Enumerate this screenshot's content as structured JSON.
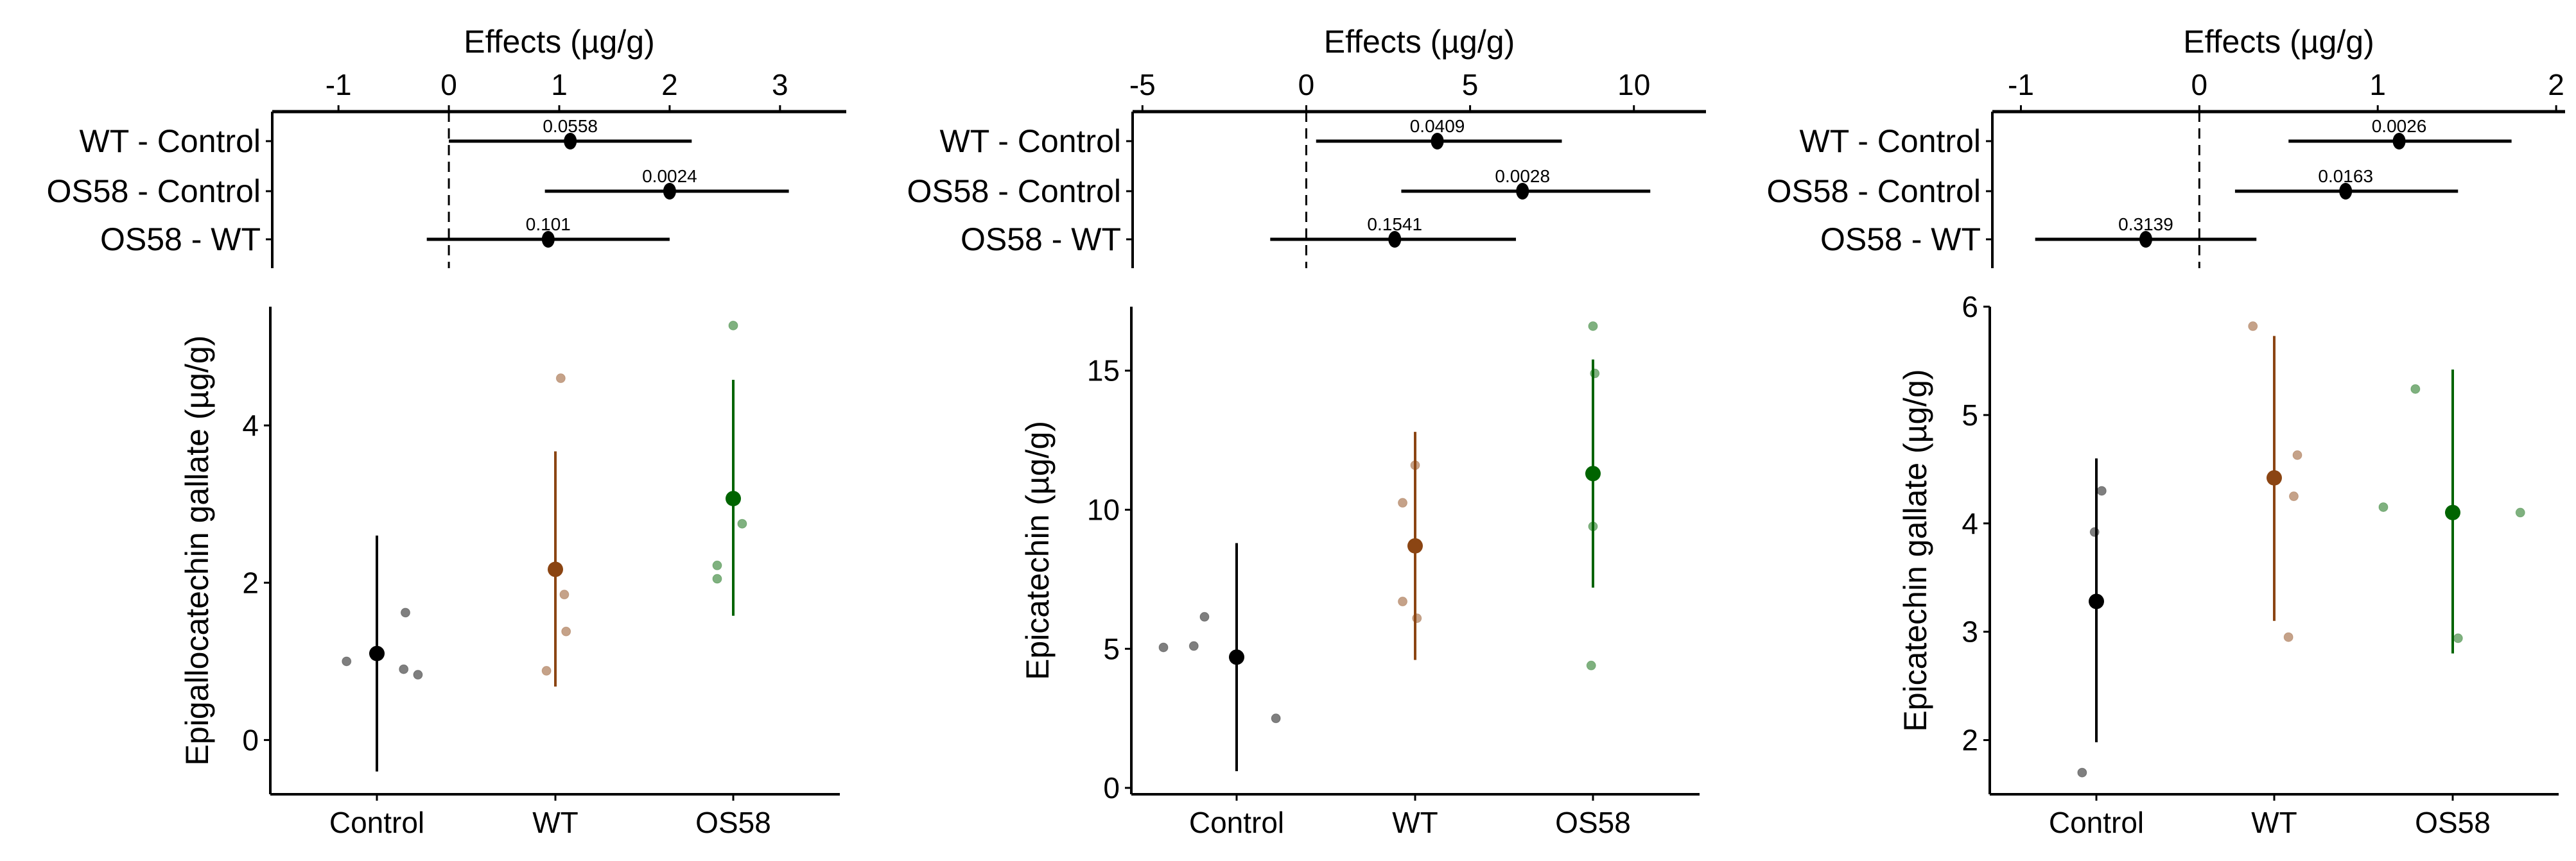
{
  "chart_data": [
    {
      "type": "forest",
      "title": "Effects (µg/g)",
      "xlim": [
        -1.6,
        3.6
      ],
      "xticks": [
        -1,
        0,
        1,
        2,
        3
      ],
      "reference_line": 0,
      "rows": [
        {
          "label": "WT - Control",
          "estimate": 1.1,
          "ci": [
            0.0,
            2.2
          ],
          "p_label": "0.0558"
        },
        {
          "label": "OS58 - Control",
          "estimate": 2.0,
          "ci": [
            0.87,
            3.08
          ],
          "p_label": "0.0024"
        },
        {
          "label": "OS58 - WT",
          "estimate": 0.9,
          "ci": [
            -0.2,
            2.0
          ],
          "p_label": "0.101"
        }
      ]
    },
    {
      "type": "scatter",
      "ylabel": "Epigallocatechin gallate (µg/g)",
      "ylim": [
        -0.69,
        5.51
      ],
      "yticks": [
        0,
        2,
        4
      ],
      "categories": [
        "Control",
        "WT",
        "OS58"
      ],
      "groups": [
        {
          "name": "Control",
          "color": "#000000",
          "mean": 1.1,
          "ci": [
            -0.4,
            2.6
          ],
          "points": [
            1.0,
            1.62,
            0.9,
            0.83
          ]
        },
        {
          "name": "WT",
          "color": "#8B4513",
          "mean": 2.17,
          "ci": [
            0.68,
            3.67
          ],
          "points": [
            4.6,
            1.85,
            1.38,
            0.88
          ]
        },
        {
          "name": "OS58",
          "color": "#006400",
          "mean": 3.07,
          "ci": [
            1.58,
            4.58
          ],
          "points": [
            5.27,
            2.75,
            2.22,
            2.05
          ]
        }
      ]
    },
    {
      "type": "forest",
      "title": "Effects (µg/g)",
      "xlim": [
        -5.3,
        12.2
      ],
      "xticks": [
        -5,
        0,
        5,
        10
      ],
      "reference_line": 0,
      "rows": [
        {
          "label": "WT - Control",
          "estimate": 4.0,
          "ci": [
            0.3,
            7.8
          ],
          "p_label": "0.0409"
        },
        {
          "label": "OS58 - Control",
          "estimate": 6.6,
          "ci": [
            2.9,
            10.5
          ],
          "p_label": "0.0028"
        },
        {
          "label": "OS58 - WT",
          "estimate": 2.7,
          "ci": [
            -1.1,
            6.4
          ],
          "p_label": "0.1541"
        }
      ]
    },
    {
      "type": "scatter",
      "ylabel": "Epicatechin (µg/g)",
      "ylim": [
        -0.23,
        17.3
      ],
      "yticks": [
        0,
        5,
        10,
        15
      ],
      "categories": [
        "Control",
        "WT",
        "OS58"
      ],
      "groups": [
        {
          "name": "Control",
          "color": "#000000",
          "mean": 4.7,
          "ci": [
            0.6,
            8.8
          ],
          "points": [
            5.05,
            5.1,
            6.15,
            2.5
          ]
        },
        {
          "name": "WT",
          "color": "#8B4513",
          "mean": 8.7,
          "ci": [
            4.6,
            12.8
          ],
          "points": [
            11.6,
            10.25,
            6.7,
            6.1
          ]
        },
        {
          "name": "OS58",
          "color": "#006400",
          "mean": 11.3,
          "ci": [
            7.2,
            15.4
          ],
          "points": [
            16.6,
            14.9,
            9.4,
            4.4
          ]
        }
      ]
    },
    {
      "type": "forest",
      "title": "Effects (µg/g)",
      "xlim": [
        -1.16,
        2.05
      ],
      "xticks": [
        -1,
        0,
        1,
        2
      ],
      "reference_line": 0,
      "rows": [
        {
          "label": "WT - Control",
          "estimate": 1.12,
          "ci": [
            0.5,
            1.75
          ],
          "p_label": "0.0026"
        },
        {
          "label": "OS58 - Control",
          "estimate": 0.82,
          "ci": [
            0.2,
            1.45
          ],
          "p_label": "0.0163"
        },
        {
          "label": "OS58 - WT",
          "estimate": -0.3,
          "ci": [
            -0.92,
            0.32
          ],
          "p_label": "0.3139"
        }
      ]
    },
    {
      "type": "scatter",
      "ylabel": "Epicatechin gallate (µg/g)",
      "ylim": [
        1.5,
        6.0
      ],
      "yticks": [
        2,
        3,
        4,
        5,
        6
      ],
      "categories": [
        "Control",
        "WT",
        "OS58"
      ],
      "groups": [
        {
          "name": "Control",
          "color": "#000000",
          "mean": 3.28,
          "ci": [
            1.98,
            4.6
          ],
          "points": [
            4.3,
            3.92,
            1.7
          ]
        },
        {
          "name": "WT",
          "color": "#8B4513",
          "mean": 4.42,
          "ci": [
            3.1,
            5.73
          ],
          "points": [
            5.82,
            4.63,
            4.25,
            2.95
          ]
        },
        {
          "name": "OS58",
          "color": "#006400",
          "mean": 4.1,
          "ci": [
            2.8,
            5.42
          ],
          "points": [
            5.24,
            4.15,
            4.1,
            2.94
          ]
        }
      ]
    }
  ]
}
